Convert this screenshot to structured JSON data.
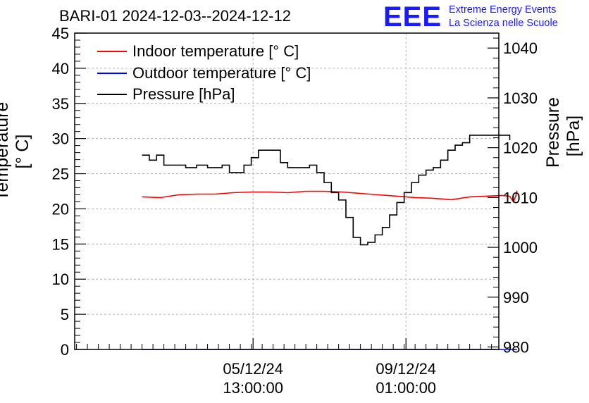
{
  "chart_data": {
    "type": "line",
    "title": "BARI-01 2024-12-03--2024-12-12",
    "ylabel": "Temperature [° C]",
    "y2label": "Pressure [hPa]",
    "ylim": [
      0,
      45
    ],
    "y2lim": [
      979.5,
      1043
    ],
    "yticks": [
      0,
      5,
      10,
      15,
      20,
      25,
      30,
      35,
      40,
      45
    ],
    "y2ticks": [
      980,
      990,
      1000,
      1010,
      1020,
      1030,
      1040
    ],
    "xticks": [
      {
        "date": "05/12/24",
        "time": "13:00:00",
        "t": 61
      },
      {
        "date": "09/12/24",
        "time": "01:00:00",
        "t": 145
      }
    ],
    "xlim": [
      -37,
      196
    ],
    "x_unit": "hours since 2024-12-03 00:00",
    "grid": true,
    "legend_position": "top-left",
    "series": [
      {
        "name": "Indoor temperature [° C]",
        "color": "#ff0000",
        "axis": "left",
        "x": [
          0,
          10,
          20,
          30,
          40,
          50,
          60,
          70,
          80,
          90,
          100,
          110,
          120,
          130,
          140,
          150,
          160,
          170,
          180,
          198,
          202,
          204,
          205.5,
          206
        ],
        "y": [
          21.7,
          21.6,
          22.0,
          22.1,
          22.1,
          22.3,
          22.4,
          22.4,
          22.3,
          22.5,
          22.5,
          22.4,
          22.2,
          22.0,
          21.8,
          21.6,
          21.5,
          21.3,
          21.7,
          21.9,
          21.8,
          21.0,
          22.0,
          22.6
        ]
      },
      {
        "name": "Outdoor temperature [° C]",
        "color": "#0000ff",
        "axis": "left",
        "x": [
          0,
          206
        ],
        "y": [
          0,
          0
        ]
      },
      {
        "name": "Pressure [hPa]",
        "color": "#000000",
        "axis": "right",
        "x": [
          0,
          4,
          8,
          12,
          16,
          20,
          24,
          30,
          36,
          40,
          44,
          48,
          52,
          56,
          60,
          64,
          66,
          70,
          72,
          76,
          80,
          84,
          88,
          92,
          96,
          100,
          104,
          108,
          112,
          116,
          120,
          124,
          128,
          132,
          136,
          140,
          144,
          148,
          152,
          156,
          160,
          164,
          168,
          172,
          176,
          180,
          184,
          188,
          192,
          196,
          200,
          202
        ],
        "y": [
          1018.5,
          1017.5,
          1018.5,
          1016.5,
          1016.5,
          1016.5,
          1016.0,
          1016.5,
          1016.0,
          1016.0,
          1016.5,
          1015.0,
          1015.0,
          1016.5,
          1018.0,
          1019.5,
          1019.5,
          1019.5,
          1019.5,
          1017.0,
          1016.0,
          1016.0,
          1016.0,
          1016.5,
          1015.0,
          1013.0,
          1011.0,
          1009.5,
          1006.0,
          1002.0,
          1000.5,
          1001.0,
          1002.5,
          1004.0,
          1006.5,
          1009.0,
          1011.0,
          1013.0,
          1014.5,
          1015.5,
          1016.0,
          1017.5,
          1019.5,
          1020.5,
          1021.0,
          1022.5,
          1022.5,
          1022.5,
          1022.5,
          1022.5,
          1022.5,
          1021.5
        ]
      }
    ]
  },
  "logo": {
    "letters": "EEE",
    "line1": "Extreme Energy Events",
    "line2": "La Scienza nelle Scuole"
  }
}
